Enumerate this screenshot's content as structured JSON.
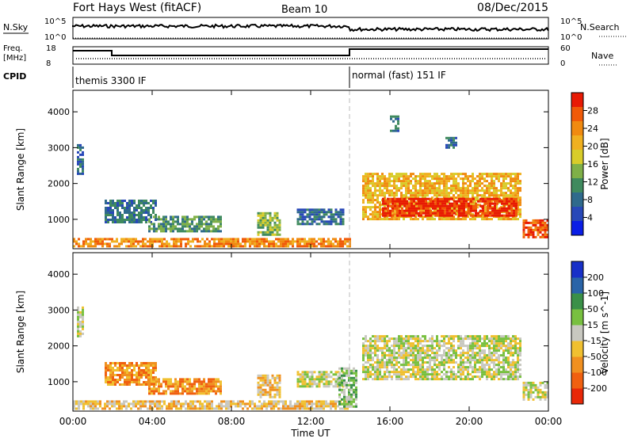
{
  "header": {
    "station": "Fort Hays West (fitACF)",
    "beam": "Beam 10",
    "date": "08/Dec/2015"
  },
  "top_panels": {
    "nsky_label": "N.Sky",
    "nsky_ticks": [
      "10^5",
      "10^0"
    ],
    "nsearch_label": "N.Search",
    "nsearch_ticks": [
      "10^5",
      "10^0"
    ],
    "freq_label_line1": "Freq.",
    "freq_label_line2": "[MHz]",
    "freq_ticks": [
      "18",
      "8"
    ],
    "nave_label": "Nave",
    "nave_ticks": [
      "60",
      "0"
    ],
    "cpid_label": "CPID",
    "cpid_segments": [
      {
        "label": "themis 3300 IF",
        "start_hour": 0,
        "end_hour": 14.05
      },
      {
        "label": "normal (fast) 151 IF",
        "start_hour": 14.05,
        "end_hour": 24
      }
    ]
  },
  "x_axis": {
    "label": "Time UT",
    "ticks": [
      "00:00",
      "04:00",
      "08:00",
      "12:00",
      "16:00",
      "20:00",
      "00:00"
    ]
  },
  "chart_data": [
    {
      "type": "heatmap",
      "name": "power",
      "ylabel": "Slant Range [km]",
      "ylim": [
        180,
        4600
      ],
      "yticks": [
        "1000",
        "2000",
        "3000",
        "4000"
      ],
      "xlim": [
        0,
        24
      ],
      "colorbar_label": "Power [dB]",
      "colorbar_ticks": [
        "4",
        "8",
        "12",
        "16",
        "20",
        "24",
        "28"
      ],
      "colorbar_colors": [
        "#0a1ee6",
        "#2848b8",
        "#2f6a8c",
        "#3f8a5e",
        "#7fb048",
        "#d8cc2a",
        "#f0b020",
        "#f08a10",
        "#f05a08",
        "#e81a04"
      ],
      "regions": [
        {
          "t0": 0.0,
          "t1": 14.0,
          "r0": 220,
          "r1": 480,
          "level": 7
        },
        {
          "t0": 1.6,
          "t1": 4.2,
          "r0": 900,
          "r1": 1550,
          "level": 2
        },
        {
          "t0": 3.8,
          "t1": 7.5,
          "r0": 650,
          "r1": 1100,
          "level": 3
        },
        {
          "t0": 9.3,
          "t1": 10.5,
          "r0": 600,
          "r1": 1200,
          "level": 4
        },
        {
          "t0": 11.3,
          "t1": 13.6,
          "r0": 850,
          "r1": 1300,
          "level": 2
        },
        {
          "t0": 0.2,
          "t1": 0.5,
          "r0": 2300,
          "r1": 3100,
          "level": 2
        },
        {
          "t0": 14.6,
          "t1": 22.6,
          "r0": 1000,
          "r1": 2300,
          "level": 6
        },
        {
          "t0": 15.6,
          "t1": 22.4,
          "r0": 1100,
          "r1": 1600,
          "level": 9
        },
        {
          "t0": 22.7,
          "t1": 24.0,
          "r0": 500,
          "r1": 1000,
          "level": 8
        },
        {
          "t0": 16.0,
          "t1": 16.4,
          "r0": 3500,
          "r1": 3900,
          "level": 2
        },
        {
          "t0": 18.8,
          "t1": 19.4,
          "r0": 3000,
          "r1": 3300,
          "level": 2
        }
      ]
    },
    {
      "type": "heatmap",
      "name": "velocity",
      "ylabel": "Slant Range [km]",
      "ylim": [
        180,
        4600
      ],
      "yticks": [
        "1000",
        "2000",
        "3000",
        "4000"
      ],
      "xlim": [
        0,
        24
      ],
      "colorbar_label": "Velocity [m s^-1]",
      "colorbar_ticks": [
        "200",
        "100",
        "50",
        "15",
        "-15",
        "-50",
        "-100",
        "-200"
      ],
      "colorbar_colors": [
        "#1830c8",
        "#2a64a8",
        "#3a9048",
        "#78c040",
        "#c8c8c0",
        "#f0c030",
        "#f09020",
        "#f06010",
        "#e82808"
      ],
      "regions": [
        {
          "t0": 0.0,
          "t1": 14.0,
          "r0": 220,
          "r1": 480,
          "level": 5
        },
        {
          "t0": 1.6,
          "t1": 4.2,
          "r0": 900,
          "r1": 1550,
          "level": 6
        },
        {
          "t0": 3.8,
          "t1": 7.5,
          "r0": 650,
          "r1": 1100,
          "level": 6
        },
        {
          "t0": 9.3,
          "t1": 10.5,
          "r0": 600,
          "r1": 1200,
          "level": 5
        },
        {
          "t0": 11.3,
          "t1": 13.6,
          "r0": 850,
          "r1": 1300,
          "level": 4
        },
        {
          "t0": 13.4,
          "t1": 14.3,
          "r0": 300,
          "r1": 1400,
          "level": 3
        },
        {
          "t0": 0.2,
          "t1": 0.5,
          "r0": 2300,
          "r1": 3100,
          "level": 4
        },
        {
          "t0": 14.6,
          "t1": 22.6,
          "r0": 1100,
          "r1": 2300,
          "level": 4
        },
        {
          "t0": 22.7,
          "t1": 24.0,
          "r0": 500,
          "r1": 1000,
          "level": 4
        }
      ]
    }
  ]
}
